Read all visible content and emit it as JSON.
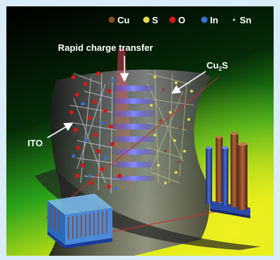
{
  "legend": [
    {
      "symbol": "Cu",
      "color": "#8b4a2a"
    },
    {
      "symbol": "S",
      "color": "#e6d94a"
    },
    {
      "symbol": "O",
      "color": "#d41818"
    },
    {
      "symbol": "In",
      "color": "#3a6fd6"
    },
    {
      "symbol": "Sn",
      "color": "#cfcfcf"
    }
  ],
  "labels": {
    "rapid": "Rapid charge transfer",
    "cu2s_main": "Cu",
    "cu2s_sub": "2",
    "cu2s_tail": "S",
    "ito": "ITO"
  },
  "colors": {
    "background_top": "#000000",
    "background_bottom": "#d8ea16",
    "interface_glow": "#5a5cff"
  }
}
